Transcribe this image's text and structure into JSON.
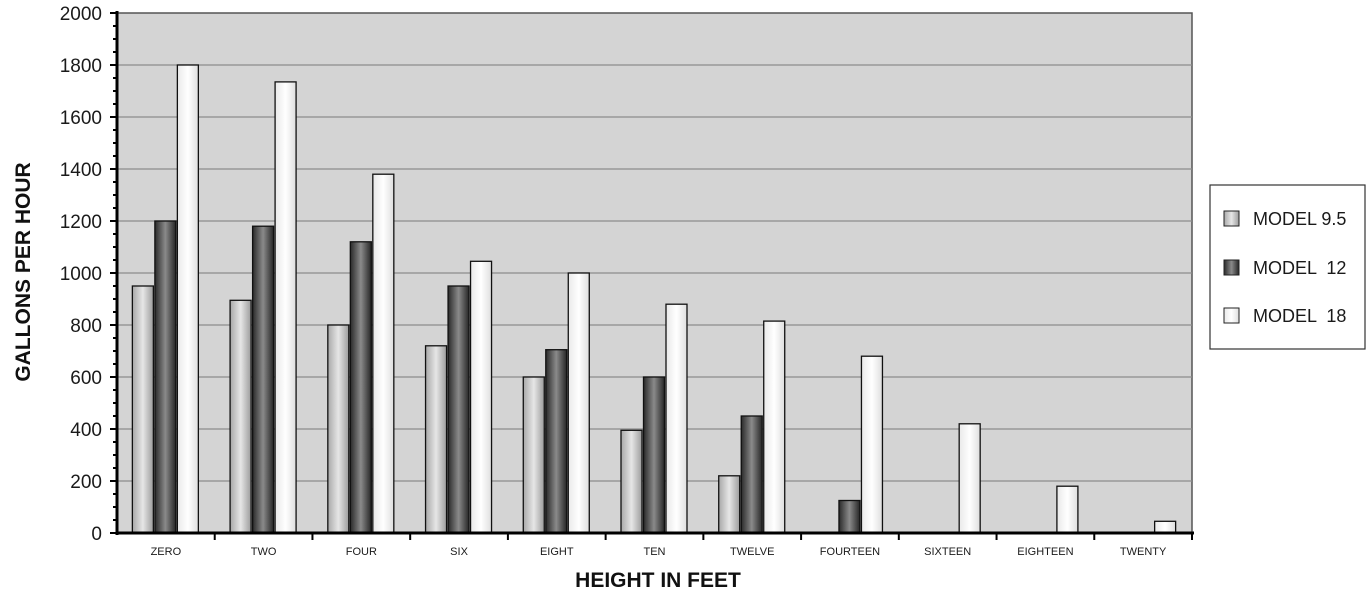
{
  "chart_data": {
    "type": "bar",
    "categories": [
      "ZERO",
      "TWO",
      "FOUR",
      "SIX",
      "EIGHT",
      "TEN",
      "TWELVE",
      "FOURTEEN",
      "SIXTEEN",
      "EIGHTEEN",
      "TWENTY"
    ],
    "series": [
      {
        "name": "MODEL 9.5",
        "values": [
          950,
          895,
          800,
          720,
          600,
          395,
          220,
          0,
          0,
          0,
          0
        ]
      },
      {
        "name": "MODEL  12",
        "values": [
          1200,
          1180,
          1120,
          950,
          705,
          600,
          450,
          125,
          0,
          0,
          0
        ]
      },
      {
        "name": "MODEL  18",
        "values": [
          1800,
          1735,
          1380,
          1045,
          1000,
          880,
          815,
          680,
          420,
          180,
          45
        ]
      }
    ],
    "xlabel": "HEIGHT IN FEET",
    "ylabel": "GALLONS PER HOUR",
    "ylim": [
      0,
      2000
    ],
    "yticks": [
      "0",
      "200",
      "400",
      "600",
      "800",
      "1000",
      "1200",
      "1400",
      "1600",
      "1800",
      "2000"
    ],
    "grid": true,
    "legend_position": "right",
    "colors": {
      "plot_background": "#d4d4d4",
      "gridline": "#8c8c8c",
      "series_fills": [
        "gray-gradient",
        "dark-gradient",
        "white-gradient"
      ]
    }
  }
}
